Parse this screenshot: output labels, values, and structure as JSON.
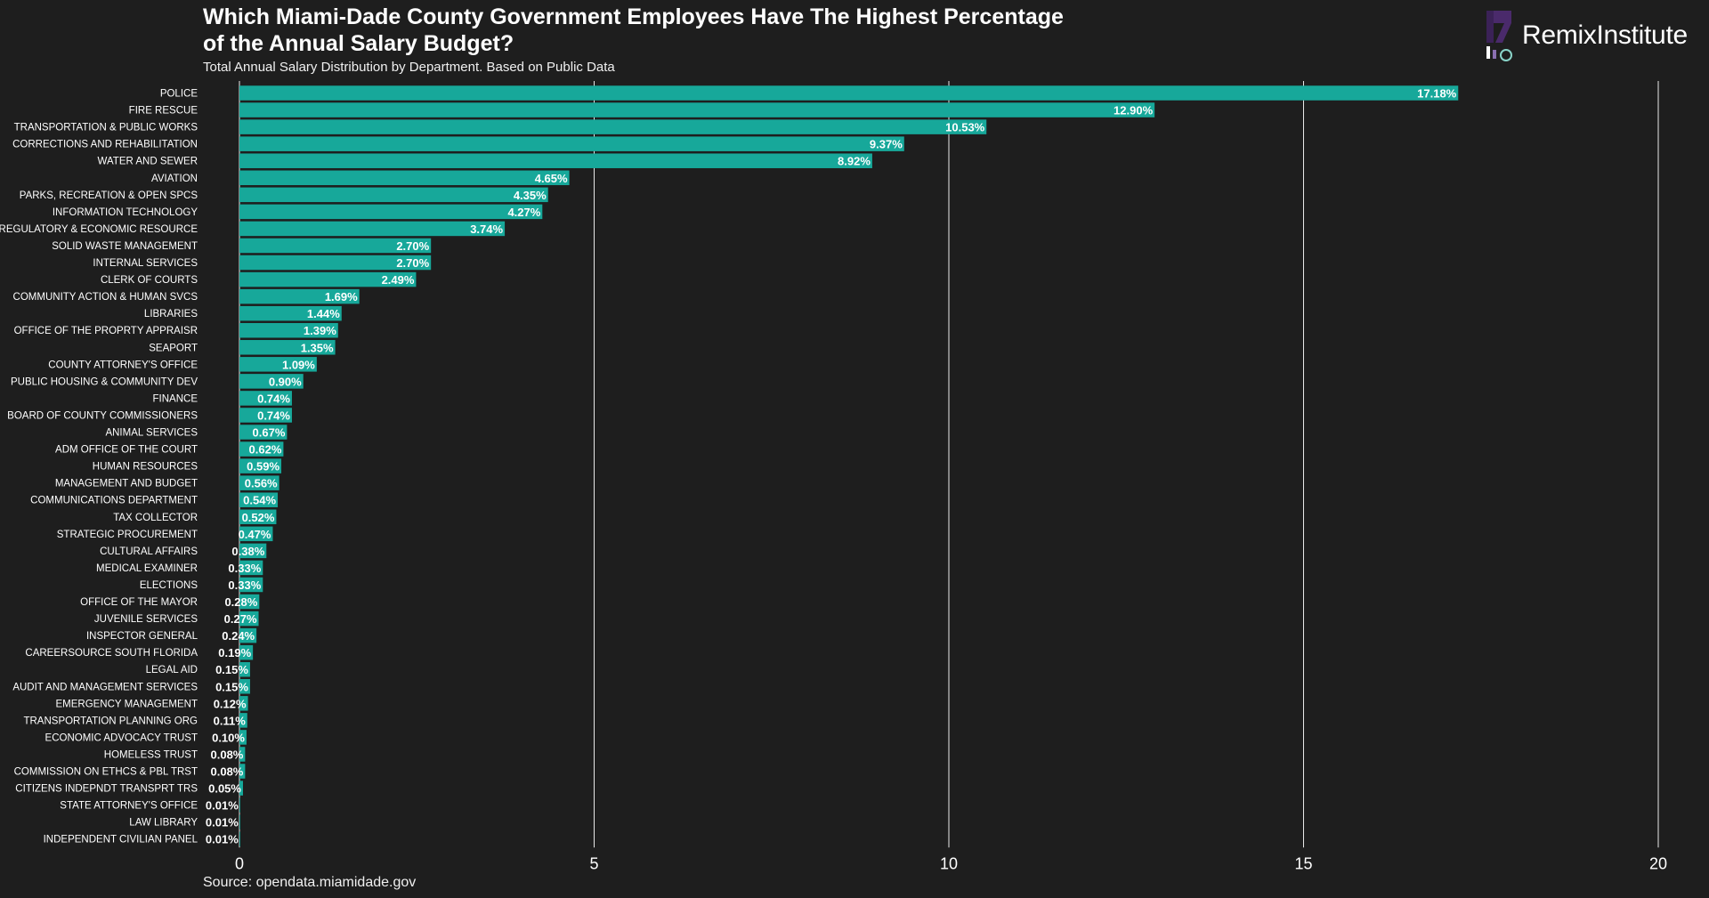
{
  "brand": {
    "name": "RemixInstitute"
  },
  "source": "Source: opendata.miamidade.gov",
  "colors": {
    "background": "#1e1e1e",
    "bar": "#17a89a",
    "text": "#ffffff",
    "grid": "#ffffff"
  },
  "chart_data": {
    "type": "bar",
    "orientation": "horizontal",
    "title": "Which Miami-Dade County Government Employees Have The Highest Percentage\nof the Annual Salary Budget?",
    "subtitle": "Total Annual Salary Distribution by Department. Based on Public Data",
    "xlabel": "",
    "ylabel": "",
    "xlim": [
      0,
      20
    ],
    "xticks": [
      0,
      5,
      10,
      15,
      20
    ],
    "grid": true,
    "value_suffix": "%",
    "categories": [
      "POLICE",
      "FIRE RESCUE",
      "TRANSPORTATION & PUBLIC WORKS",
      "CORRECTIONS AND REHABILITATION",
      "WATER AND SEWER",
      "AVIATION",
      "PARKS, RECREATION & OPEN SPCS",
      "INFORMATION TECHNOLOGY",
      "REGULATORY & ECONOMIC RESOURCE",
      "SOLID WASTE MANAGEMENT",
      "INTERNAL SERVICES",
      "CLERK OF COURTS",
      "COMMUNITY ACTION & HUMAN SVCS",
      "LIBRARIES",
      "OFFICE OF THE PROPRTY APPRAISR",
      "SEAPORT",
      "COUNTY ATTORNEY'S OFFICE",
      "PUBLIC HOUSING & COMMUNITY DEV",
      "FINANCE",
      "BOARD OF COUNTY COMMISSIONERS",
      "ANIMAL SERVICES",
      "ADM OFFICE OF THE COURT",
      "HUMAN RESOURCES",
      "MANAGEMENT AND BUDGET",
      "COMMUNICATIONS DEPARTMENT",
      "TAX COLLECTOR",
      "STRATEGIC PROCUREMENT",
      "CULTURAL AFFAIRS",
      "MEDICAL EXAMINER",
      "ELECTIONS",
      "OFFICE OF THE MAYOR",
      "JUVENILE SERVICES",
      "INSPECTOR GENERAL",
      "CAREERSOURCE SOUTH FLORIDA",
      "LEGAL AID",
      "AUDIT AND MANAGEMENT SERVICES",
      "EMERGENCY MANAGEMENT",
      "TRANSPORTATION PLANNING ORG",
      "ECONOMIC ADVOCACY TRUST",
      "HOMELESS TRUST",
      "COMMISSION ON ETHCS & PBL TRST",
      "CITIZENS INDEPNDT TRANSPRT TRS",
      "STATE ATTORNEY'S OFFICE",
      "LAW LIBRARY",
      "INDEPENDENT CIVILIAN PANEL"
    ],
    "values": [
      17.18,
      12.9,
      10.53,
      9.37,
      8.92,
      4.65,
      4.35,
      4.27,
      3.74,
      2.7,
      2.7,
      2.49,
      1.69,
      1.44,
      1.39,
      1.35,
      1.09,
      0.9,
      0.74,
      0.74,
      0.67,
      0.62,
      0.59,
      0.56,
      0.54,
      0.52,
      0.47,
      0.38,
      0.33,
      0.33,
      0.28,
      0.27,
      0.24,
      0.19,
      0.15,
      0.15,
      0.12,
      0.11,
      0.1,
      0.08,
      0.08,
      0.05,
      0.01,
      0.01,
      0.01
    ],
    "data_labels": [
      "17.18%",
      "12.90%",
      "10.53%",
      "9.37%",
      "8.92%",
      "4.65%",
      "4.35%",
      "4.27%",
      "3.74%",
      "2.70%",
      "2.70%",
      "2.49%",
      "1.69%",
      "1.44%",
      "1.39%",
      "1.35%",
      "1.09%",
      "0.90%",
      "0.74%",
      "0.74%",
      "0.67%",
      "0.62%",
      "0.59%",
      "0.56%",
      "0.54%",
      "0.52%",
      "0.47%",
      "0.38%",
      "0.33%",
      "0.33%",
      "0.28%",
      "0.27%",
      "0.24%",
      "0.19%",
      "0.15%",
      "0.15%",
      "0.12%",
      "0.11%",
      "0.10%",
      "0.08%",
      "0.08%",
      "0.05%",
      "0.01%",
      "0.01%",
      "0.01%"
    ]
  }
}
